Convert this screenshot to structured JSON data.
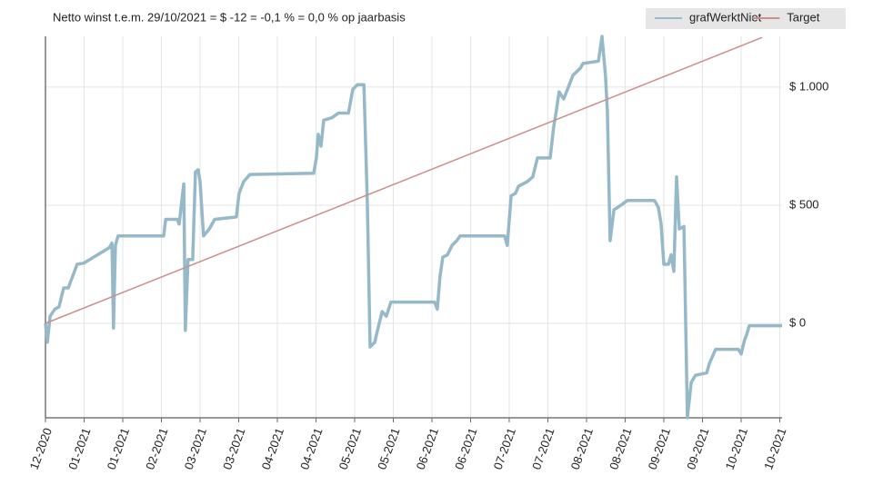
{
  "chart_data": {
    "type": "line",
    "title": "Netto winst t.e.m. 29/10/2021 = $ -12 = -0,1 % = 0,0 % op jaarbasis",
    "legend": "top-right",
    "grid": true,
    "xlim": [
      0,
      19.06
    ],
    "xticks": [
      {
        "value": 0,
        "label": "12-2020"
      },
      {
        "value": 1,
        "label": "01-2021"
      },
      {
        "value": 2,
        "label": "01-2021"
      },
      {
        "value": 3,
        "label": "02-2021"
      },
      {
        "value": 4,
        "label": "03-2021"
      },
      {
        "value": 5,
        "label": "03-2021"
      },
      {
        "value": 6,
        "label": "04-2021"
      },
      {
        "value": 7,
        "label": "04-2021"
      },
      {
        "value": 8,
        "label": "05-2021"
      },
      {
        "value": 9,
        "label": "05-2021"
      },
      {
        "value": 10,
        "label": "06-2021"
      },
      {
        "value": 11,
        "label": "06-2021"
      },
      {
        "value": 12,
        "label": "07-2021"
      },
      {
        "value": 13,
        "label": "07-2021"
      },
      {
        "value": 14,
        "label": "08-2021"
      },
      {
        "value": 15,
        "label": "08-2021"
      },
      {
        "value": 16,
        "label": "09-2021"
      },
      {
        "value": 17,
        "label": "09-2021"
      },
      {
        "value": 18,
        "label": "10-2021"
      },
      {
        "value": 19,
        "label": "10-2021"
      }
    ],
    "ylim": [
      -400,
      1215
    ],
    "yticks": [
      {
        "value": 0,
        "label": "$ 0"
      },
      {
        "value": 500,
        "label": "$ 500"
      },
      {
        "value": 1000,
        "label": "$ 1.000"
      }
    ],
    "series": [
      {
        "name": "grafWerktNiet",
        "color": "#95b9c9",
        "x": [
          0,
          0.05,
          0.12,
          0.24,
          0.35,
          0.47,
          0.59,
          0.82,
          0.99,
          1.65,
          1.72,
          1.76,
          1.81,
          1.88,
          1.95,
          3.06,
          3.11,
          3.41,
          3.46,
          3.58,
          3.62,
          3.69,
          3.81,
          3.88,
          3.95,
          4.0,
          4.09,
          4.24,
          4.38,
          4.94,
          5.01,
          5.13,
          5.29,
          6.94,
          7.01,
          7.06,
          7.13,
          7.2,
          7.41,
          7.58,
          7.84,
          7.95,
          8.07,
          8.24,
          8.33,
          8.4,
          8.52,
          8.59,
          8.71,
          8.82,
          8.94,
          10.07,
          10.14,
          10.21,
          10.28,
          10.4,
          10.52,
          10.64,
          10.73,
          11.88,
          11.95,
          12.05,
          12.16,
          12.24,
          12.47,
          12.61,
          12.73,
          13.06,
          13.15,
          13.22,
          13.29,
          13.41,
          13.65,
          13.84,
          13.91,
          14.31,
          14.4,
          14.49,
          14.54,
          14.61,
          14.71,
          14.89,
          15.06,
          15.76,
          15.86,
          15.93,
          16.0,
          16.12,
          16.19,
          16.26,
          16.33,
          16.4,
          16.52,
          16.61,
          16.71,
          16.82,
          17.11,
          17.18,
          17.34,
          17.93,
          18.0,
          18.09,
          18.14,
          18.21,
          19.06
        ],
        "values": [
          0,
          -80,
          30,
          60,
          70,
          150,
          150,
          250,
          255,
          320,
          340,
          -20,
          330,
          370,
          370,
          370,
          440,
          440,
          420,
          590,
          -30,
          270,
          270,
          640,
          650,
          600,
          370,
          400,
          440,
          450,
          550,
          600,
          630,
          635,
          700,
          800,
          750,
          860,
          870,
          890,
          890,
          990,
          1010,
          1010,
          500,
          -100,
          -80,
          -30,
          50,
          30,
          90,
          90,
          60,
          200,
          280,
          290,
          330,
          350,
          370,
          370,
          330,
          540,
          550,
          580,
          600,
          620,
          700,
          700,
          830,
          900,
          980,
          950,
          1050,
          1080,
          1100,
          1110,
          1215,
          1050,
          900,
          350,
          480,
          500,
          520,
          520,
          490,
          420,
          250,
          250,
          290,
          220,
          620,
          400,
          410,
          -400,
          -250,
          -220,
          -210,
          -170,
          -110,
          -110,
          -130,
          -70,
          -50,
          -10,
          -10
        ]
      },
      {
        "name": "Target",
        "color": "#cc8f8a",
        "x": [
          0,
          18.54
        ],
        "values": [
          0,
          1210
        ]
      }
    ]
  }
}
